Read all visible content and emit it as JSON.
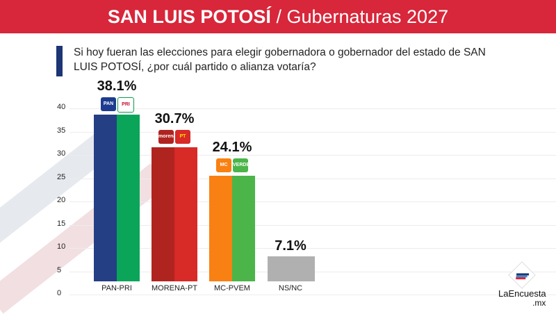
{
  "header": {
    "title_bold": "SAN LUIS POTOSÍ",
    "title_rest": " / Gubernaturas 2027"
  },
  "question": "Si hoy fueran las elecciones para elegir gobernadora o gobernador del estado de SAN LUIS POTOSÍ, ¿por cuál partido o alianza votaría?",
  "brand": {
    "name": "LaEncuesta",
    "tld": ".mx"
  },
  "logos": {
    "pan": "PAN",
    "pri": "PRI",
    "morena": "morena",
    "pt": "PT",
    "mc": "MC",
    "verde": "VERDE"
  },
  "chart_data": {
    "type": "bar",
    "categories": [
      "PAN-PRI",
      "MORENA-PT",
      "MC-PVEM",
      "NS/NC"
    ],
    "values": [
      38.1,
      30.7,
      24.1,
      7.1
    ],
    "labels": [
      "38.1%",
      "30.7%",
      "24.1%",
      "7.1%"
    ],
    "colors": [
      [
        "#253f85",
        "#0ba55a"
      ],
      [
        "#b02420",
        "#d82a27"
      ],
      [
        "#f98012",
        "#4bb54a"
      ],
      [
        "#b0b0b0",
        "#b0b0b0"
      ]
    ],
    "yticks": [
      0,
      5,
      10,
      15,
      20,
      25,
      30,
      35,
      40
    ],
    "ylim": [
      0,
      40
    ],
    "grid": true
  }
}
